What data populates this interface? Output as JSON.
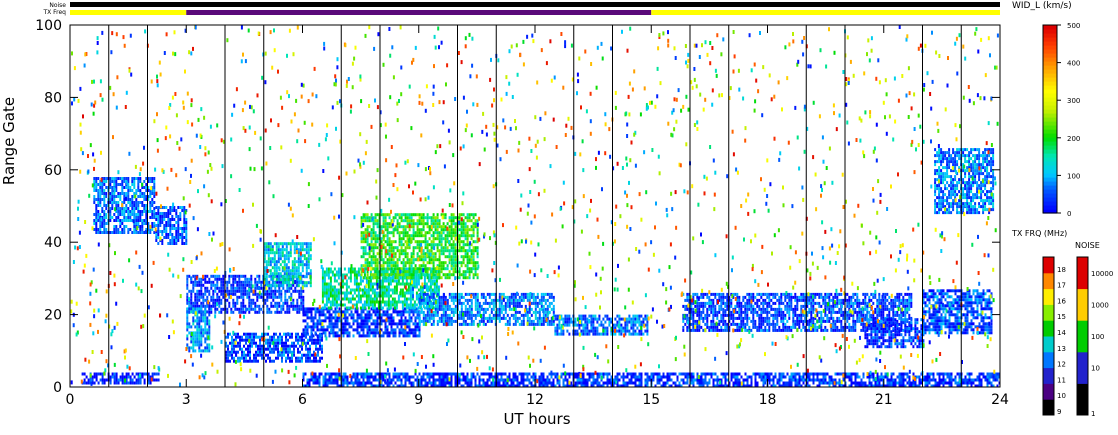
{
  "chart_data": {
    "type": "scatter",
    "xlabel": "UT hours",
    "ylabel": "Range Gate",
    "xlim": [
      0,
      24
    ],
    "ylim": [
      0,
      100
    ],
    "x_ticks": [
      0,
      3,
      6,
      9,
      12,
      15,
      18,
      21,
      24
    ],
    "y_ticks": [
      0,
      20,
      40,
      60,
      80,
      100
    ],
    "scan_lines_hours": [
      1,
      2,
      4,
      5,
      7,
      8,
      10,
      11,
      13,
      14,
      16,
      17,
      19,
      20,
      22,
      23
    ],
    "status_bars": {
      "noise_label": "Noise",
      "txfreq_label": "TX Freq",
      "noise": [
        {
          "from": 0,
          "to": 24,
          "color": "#000000"
        }
      ],
      "txfreq": [
        {
          "from": 0,
          "to": 3,
          "color": "#ffff00"
        },
        {
          "from": 3,
          "to": 15,
          "color": "#5a0a7a"
        },
        {
          "from": 15,
          "to": 24,
          "color": "#ffff00"
        }
      ]
    },
    "width_scale": {
      "title": "WID_L (km/s)",
      "ticks": [
        0,
        100,
        200,
        300,
        400,
        500
      ],
      "range": [
        0,
        500
      ]
    },
    "txfrq_scale": {
      "title": "TX FRQ (MHz)",
      "ticks": [
        "9",
        "10",
        "11",
        "12",
        "13",
        "14",
        "15",
        "16",
        "17",
        "18"
      ],
      "colors": [
        "#000000",
        "#4b0082",
        "#2222cc",
        "#0077ff",
        "#00cccc",
        "#00cc00",
        "#88ee00",
        "#ffee00",
        "#ff8800",
        "#dd0000"
      ]
    },
    "noise_scale": {
      "title": "NOISE",
      "ticks": [
        "1",
        "10",
        "100",
        "1000",
        "10000"
      ],
      "colors": [
        "#000000",
        "#2222cc",
        "#00cc00",
        "#ffcc00",
        "#dd0000"
      ]
    },
    "echo_regions": [
      {
        "x0": 0.6,
        "x1": 2.2,
        "y0": 43,
        "y1": 58,
        "width": 60
      },
      {
        "x0": 2.2,
        "x1": 3.0,
        "y0": 40,
        "y1": 50,
        "width": 50
      },
      {
        "x0": 3.0,
        "x1": 6.0,
        "y0": 21,
        "y1": 31,
        "width": 30
      },
      {
        "x0": 3.0,
        "x1": 3.6,
        "y0": 10,
        "y1": 22,
        "width": 80
      },
      {
        "x0": 4.0,
        "x1": 6.5,
        "y0": 7,
        "y1": 15,
        "width": 40
      },
      {
        "x0": 5.0,
        "x1": 6.2,
        "y0": 28,
        "y1": 40,
        "width": 120
      },
      {
        "x0": 6.0,
        "x1": 9.0,
        "y0": 14,
        "y1": 22,
        "width": 30
      },
      {
        "x0": 6.5,
        "x1": 9.5,
        "y0": 22,
        "y1": 33,
        "width": 150
      },
      {
        "x0": 9.0,
        "x1": 12.5,
        "y0": 17,
        "y1": 26,
        "width": 70
      },
      {
        "x0": 7.5,
        "x1": 10.5,
        "y0": 30,
        "y1": 48,
        "width": 200
      },
      {
        "x0": 12.5,
        "x1": 14.9,
        "y0": 15,
        "y1": 20,
        "width": 60
      },
      {
        "x0": 15.8,
        "x1": 21.7,
        "y0": 16,
        "y1": 26,
        "width": 40
      },
      {
        "x0": 20.5,
        "x1": 22.0,
        "y0": 11,
        "y1": 19,
        "width": 30
      },
      {
        "x0": 22.0,
        "x1": 23.8,
        "y0": 15,
        "y1": 27,
        "width": 50
      },
      {
        "x0": 22.3,
        "x1": 23.8,
        "y0": 48,
        "y1": 66,
        "width": 70
      },
      {
        "x0": 0.3,
        "x1": 2.3,
        "y0": 1,
        "y1": 4,
        "width": 20
      },
      {
        "x0": 6.0,
        "x1": 24.0,
        "y0": 0,
        "y1": 4,
        "width": 30
      }
    ],
    "scatter_density": 0.03
  }
}
